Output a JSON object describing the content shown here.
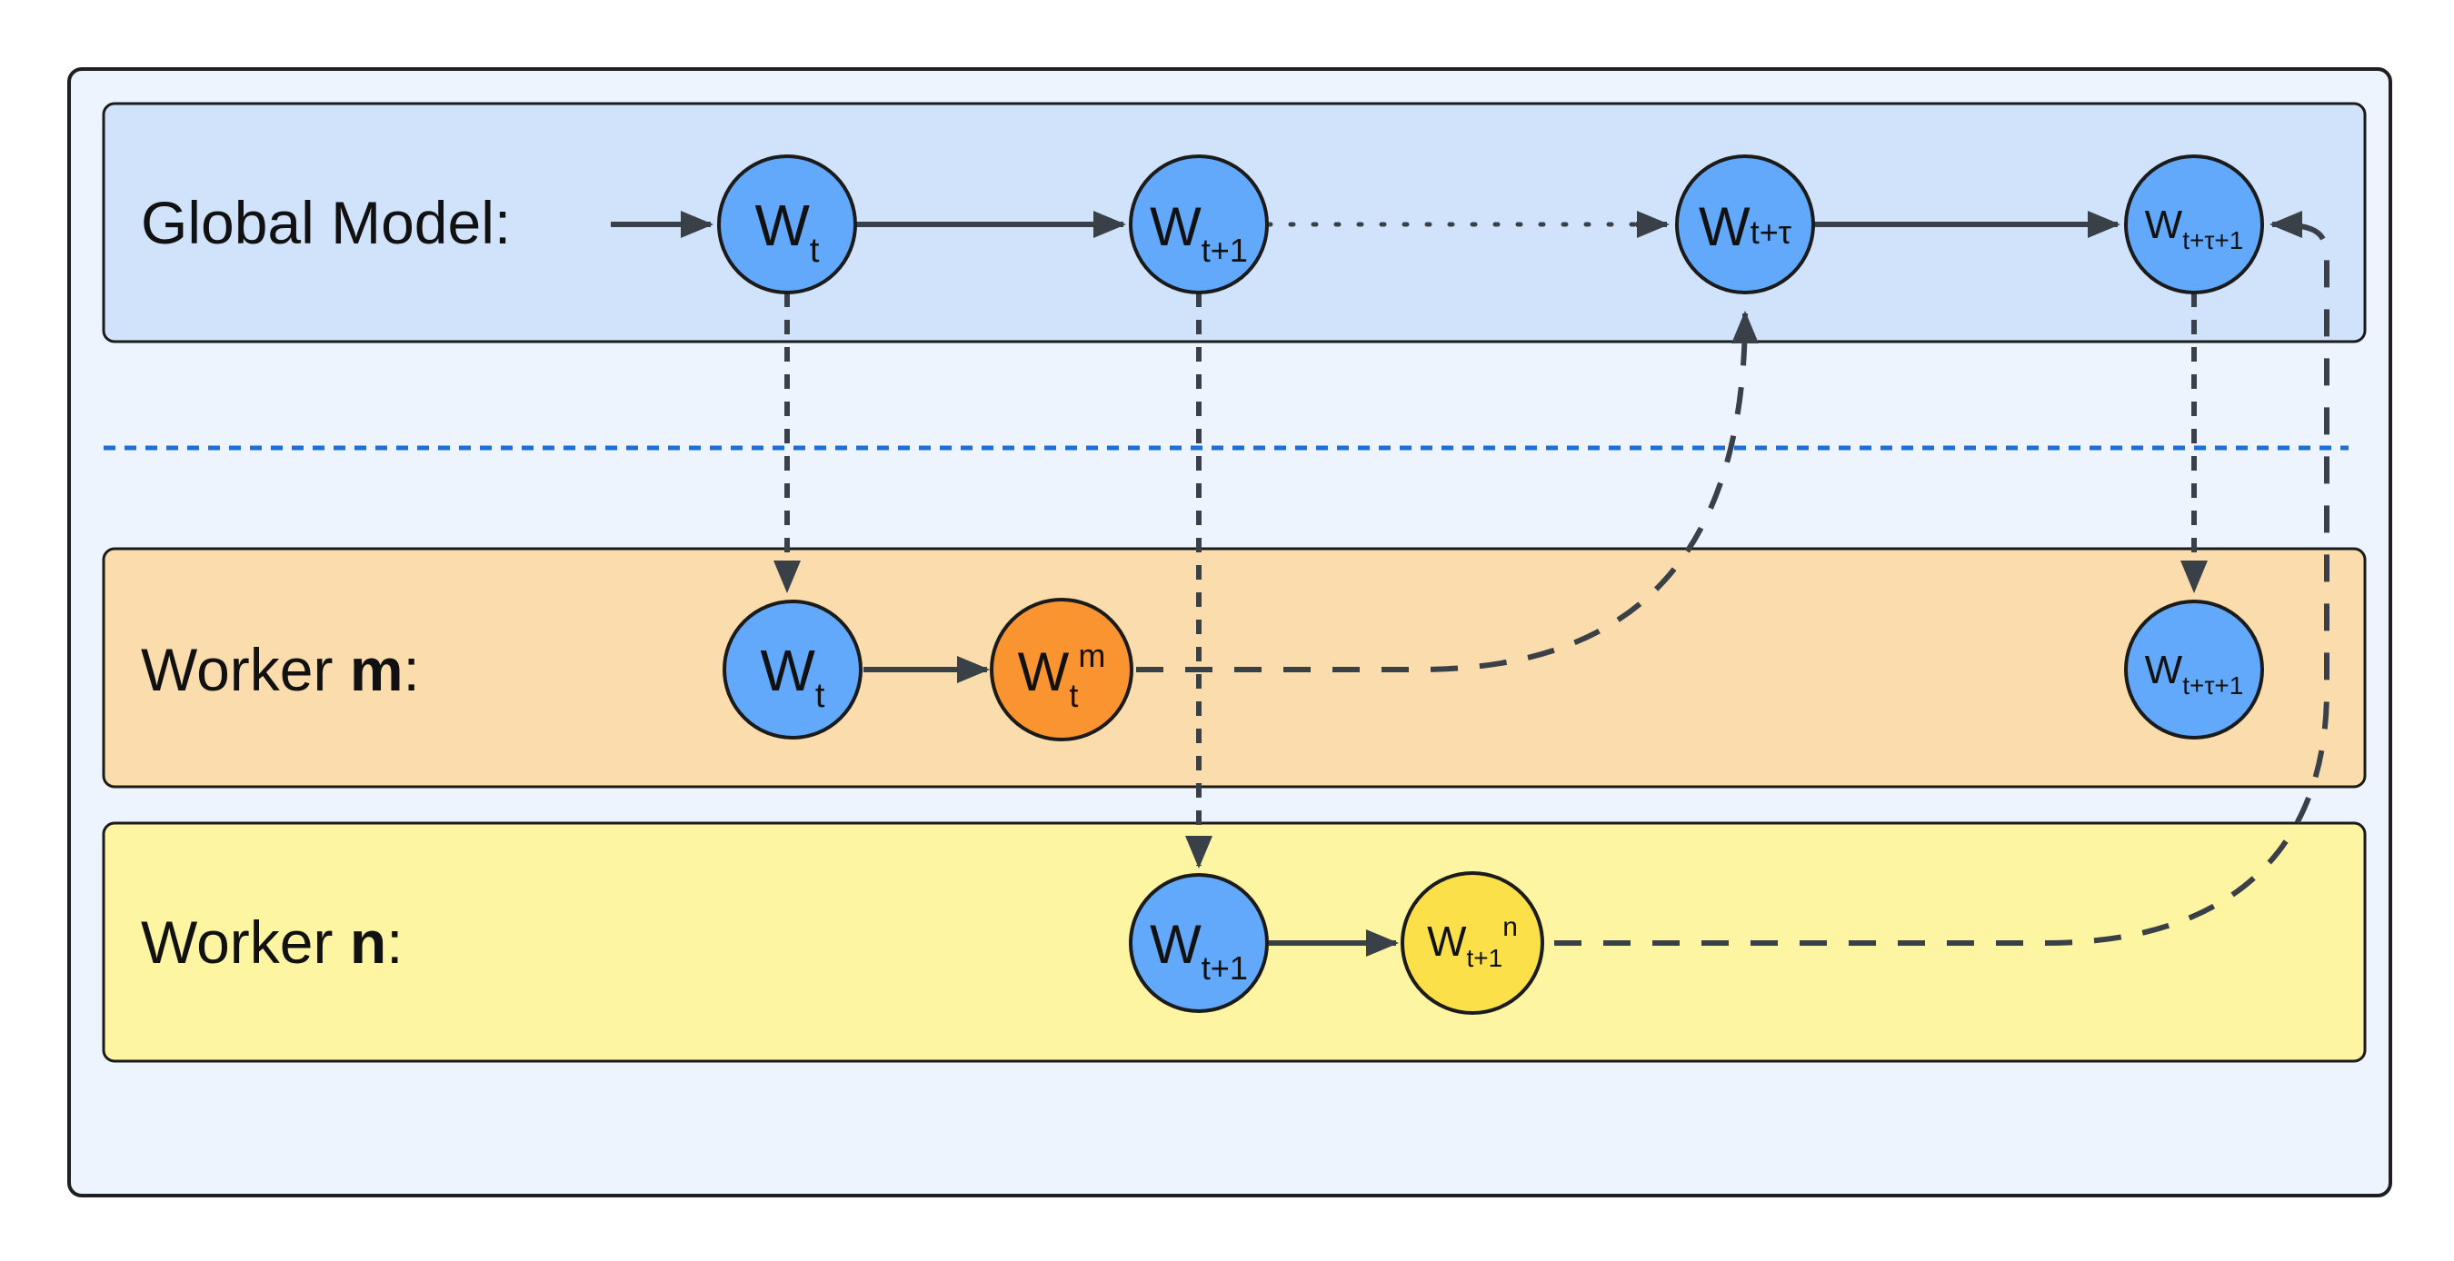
{
  "colors": {
    "outer_bg": "#edf4fd",
    "global_lane": "#d0e3fb",
    "worker_m_lane": "#fbddad",
    "worker_n_lane": "#fdf5a2",
    "node_blue": "#62a9fb",
    "node_orange": "#fa9430",
    "node_yellow": "#fbe04a",
    "arrow": "#3a4048",
    "separator": "#1d6fd6"
  },
  "lanes": {
    "global": {
      "label": "Global Model:"
    },
    "worker_m": {
      "label_prefix": "Worker ",
      "label_bold": "m",
      "label_suffix": ":"
    },
    "worker_n": {
      "label_prefix": "Worker ",
      "label_bold": "n",
      "label_suffix": ":"
    }
  },
  "nodes": {
    "g_wt": {
      "base": "W",
      "sub": "t",
      "sup": "",
      "color": "blue"
    },
    "g_wt1": {
      "base": "W",
      "sub": "t+1",
      "sup": "",
      "color": "blue"
    },
    "g_wttau": {
      "base": "W",
      "sub": "t+τ",
      "sup": "",
      "color": "blue"
    },
    "g_wttau1": {
      "base": "W",
      "sub": "t+τ+1",
      "sup": "",
      "color": "blue"
    },
    "m_wt": {
      "base": "W",
      "sub": "t",
      "sup": "",
      "color": "blue"
    },
    "m_wtm": {
      "base": "W",
      "sub": "t",
      "sup": "m",
      "color": "orange"
    },
    "m_wttau1": {
      "base": "W",
      "sub": "t+τ+1",
      "sup": "",
      "color": "blue"
    },
    "n_wt1": {
      "base": "W",
      "sub": "t+1",
      "sup": "",
      "color": "blue"
    },
    "n_wt1n": {
      "base": "W",
      "sub": "t+1",
      "sup": "n",
      "color": "yellow"
    }
  }
}
